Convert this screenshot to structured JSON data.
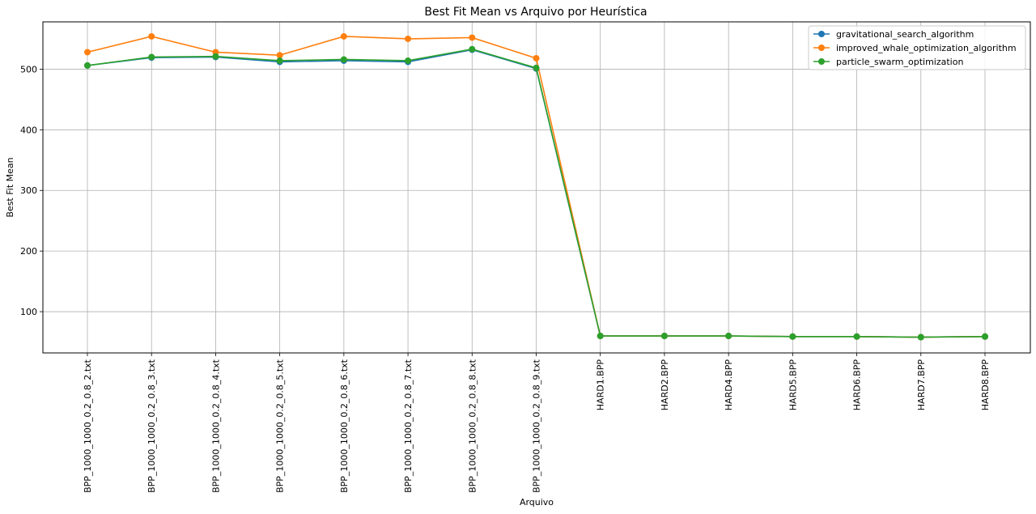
{
  "chart_data": {
    "type": "line",
    "title": "Best Fit Mean vs Arquivo por Heurística",
    "xlabel": "Arquivo",
    "ylabel": "Best Fit Mean",
    "categories": [
      "BPP_1000_1000_0.2_0.8_2.txt",
      "BPP_1000_1000_0.2_0.8_3.txt",
      "BPP_1000_1000_0.2_0.8_4.txt",
      "BPP_1000_1000_0.2_0.8_5.txt",
      "BPP_1000_1000_0.2_0.8_6.txt",
      "BPP_1000_1000_0.2_0.8_7.txt",
      "BPP_1000_1000_0.2_0.8_8.txt",
      "BPP_1000_1000_0.2_0.8_9.txt",
      "HARD1.BPP",
      "HARD2.BPP",
      "HARD4.BPP",
      "HARD5.BPP",
      "HARD6.BPP",
      "HARD7.BPP",
      "HARD8.BPP"
    ],
    "ylim": [
      32,
      578
    ],
    "yticks": [
      100,
      200,
      300,
      400,
      500
    ],
    "grid": true,
    "legend_position": "top-right",
    "series": [
      {
        "name": "gravitational_search_algorithm",
        "color": "#1f77b4",
        "values": [
          506,
          519,
          520,
          512,
          514,
          512,
          532,
          501,
          60,
          60,
          60,
          59,
          59,
          58,
          59
        ]
      },
      {
        "name": "improved_whale_optimization_algorithm",
        "color": "#ff7f0e",
        "values": [
          528,
          554,
          528,
          523,
          554,
          550,
          552,
          518,
          60,
          60,
          60,
          59,
          59,
          58,
          59
        ]
      },
      {
        "name": "particle_swarm_optimization",
        "color": "#2ca02c",
        "values": [
          506,
          520,
          521,
          514,
          516,
          514,
          533,
          502,
          60,
          60,
          60,
          59,
          59,
          58,
          59
        ]
      }
    ]
  }
}
